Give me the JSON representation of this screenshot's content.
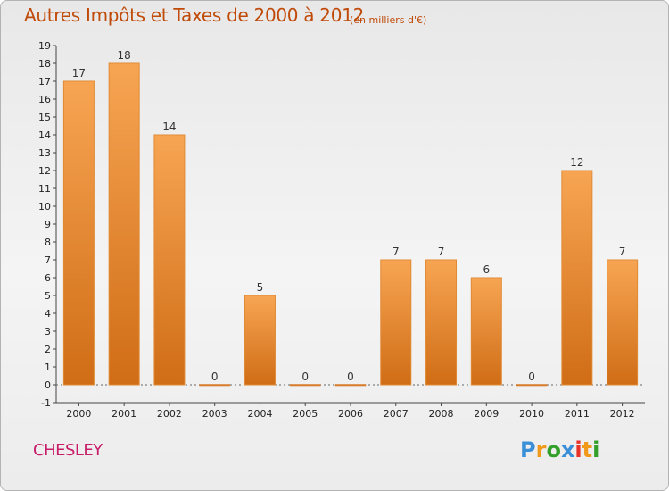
{
  "title": "Autres Impôts et Taxes de 2000 à 2012",
  "subtitle": "(en milliers d'€)",
  "commune": "CHESLEY",
  "logo": {
    "text": "Proxiti",
    "letters": [
      "P",
      "r",
      "o",
      "x",
      "i",
      "t",
      "i"
    ],
    "colors": [
      "#3a8fd8",
      "#f19a1a",
      "#33a02c",
      "#3a8fd8",
      "#e8332a",
      "#f19a1a",
      "#33a02c"
    ]
  },
  "colors": {
    "bar_light": "#f7a553",
    "bar_dark": "#d06d16",
    "title": "#c04a08",
    "commune": "#c81e6a"
  },
  "chart_data": {
    "type": "bar",
    "categories": [
      "2000",
      "2001",
      "2002",
      "2003",
      "2004",
      "2005",
      "2006",
      "2007",
      "2008",
      "2009",
      "2010",
      "2011",
      "2012"
    ],
    "values": [
      17,
      18,
      14,
      0,
      5,
      0,
      0,
      7,
      7,
      6,
      0,
      12,
      7
    ],
    "value_labels": [
      "17",
      "18",
      "14",
      "0",
      "5",
      "0",
      "0",
      "7",
      "7",
      "6",
      "0",
      "12",
      "7"
    ],
    "y_ticks": [
      "-1",
      "0",
      "1",
      "2",
      "3",
      "4",
      "5",
      "6",
      "7",
      "8",
      "9",
      "10",
      "11",
      "12",
      "13",
      "14",
      "15",
      "16",
      "17",
      "18",
      "19"
    ],
    "ylim": [
      -1,
      19
    ],
    "grid": false,
    "xlabel": "",
    "ylabel": ""
  }
}
